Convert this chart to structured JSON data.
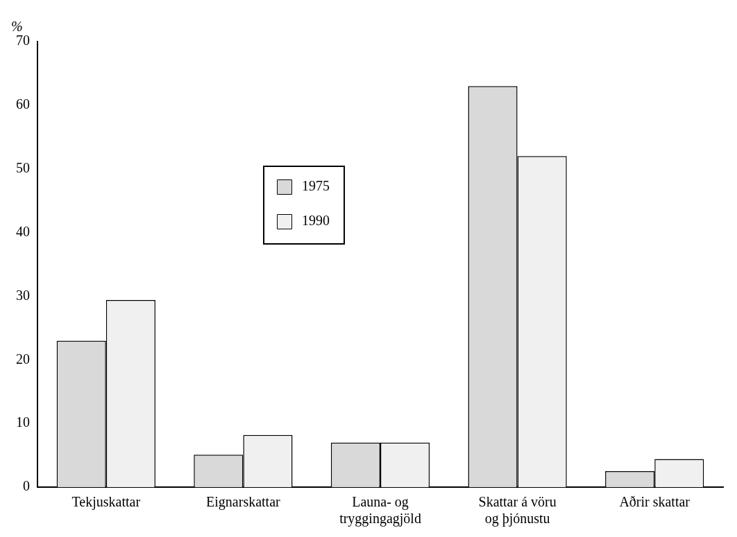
{
  "chart_data": {
    "type": "bar",
    "ylabel": "%",
    "categories": [
      "Tekjuskattar",
      "Eignarskattar",
      "Launa- og tryggingagjöld",
      "Skattar á vöru og þjónustu",
      "Aðrir skattar"
    ],
    "series": [
      {
        "name": "1975",
        "color": "#d9d9d9",
        "values": [
          23,
          5.1,
          7,
          63,
          2.5
        ]
      },
      {
        "name": "1990",
        "color": "#f0f0f0",
        "values": [
          29.4,
          8.2,
          7,
          52,
          4.4
        ]
      }
    ],
    "ylim": [
      0,
      70
    ],
    "yticks": [
      0,
      10,
      20,
      30,
      40,
      50,
      60,
      70
    ],
    "grid": false,
    "legend": "top left"
  }
}
